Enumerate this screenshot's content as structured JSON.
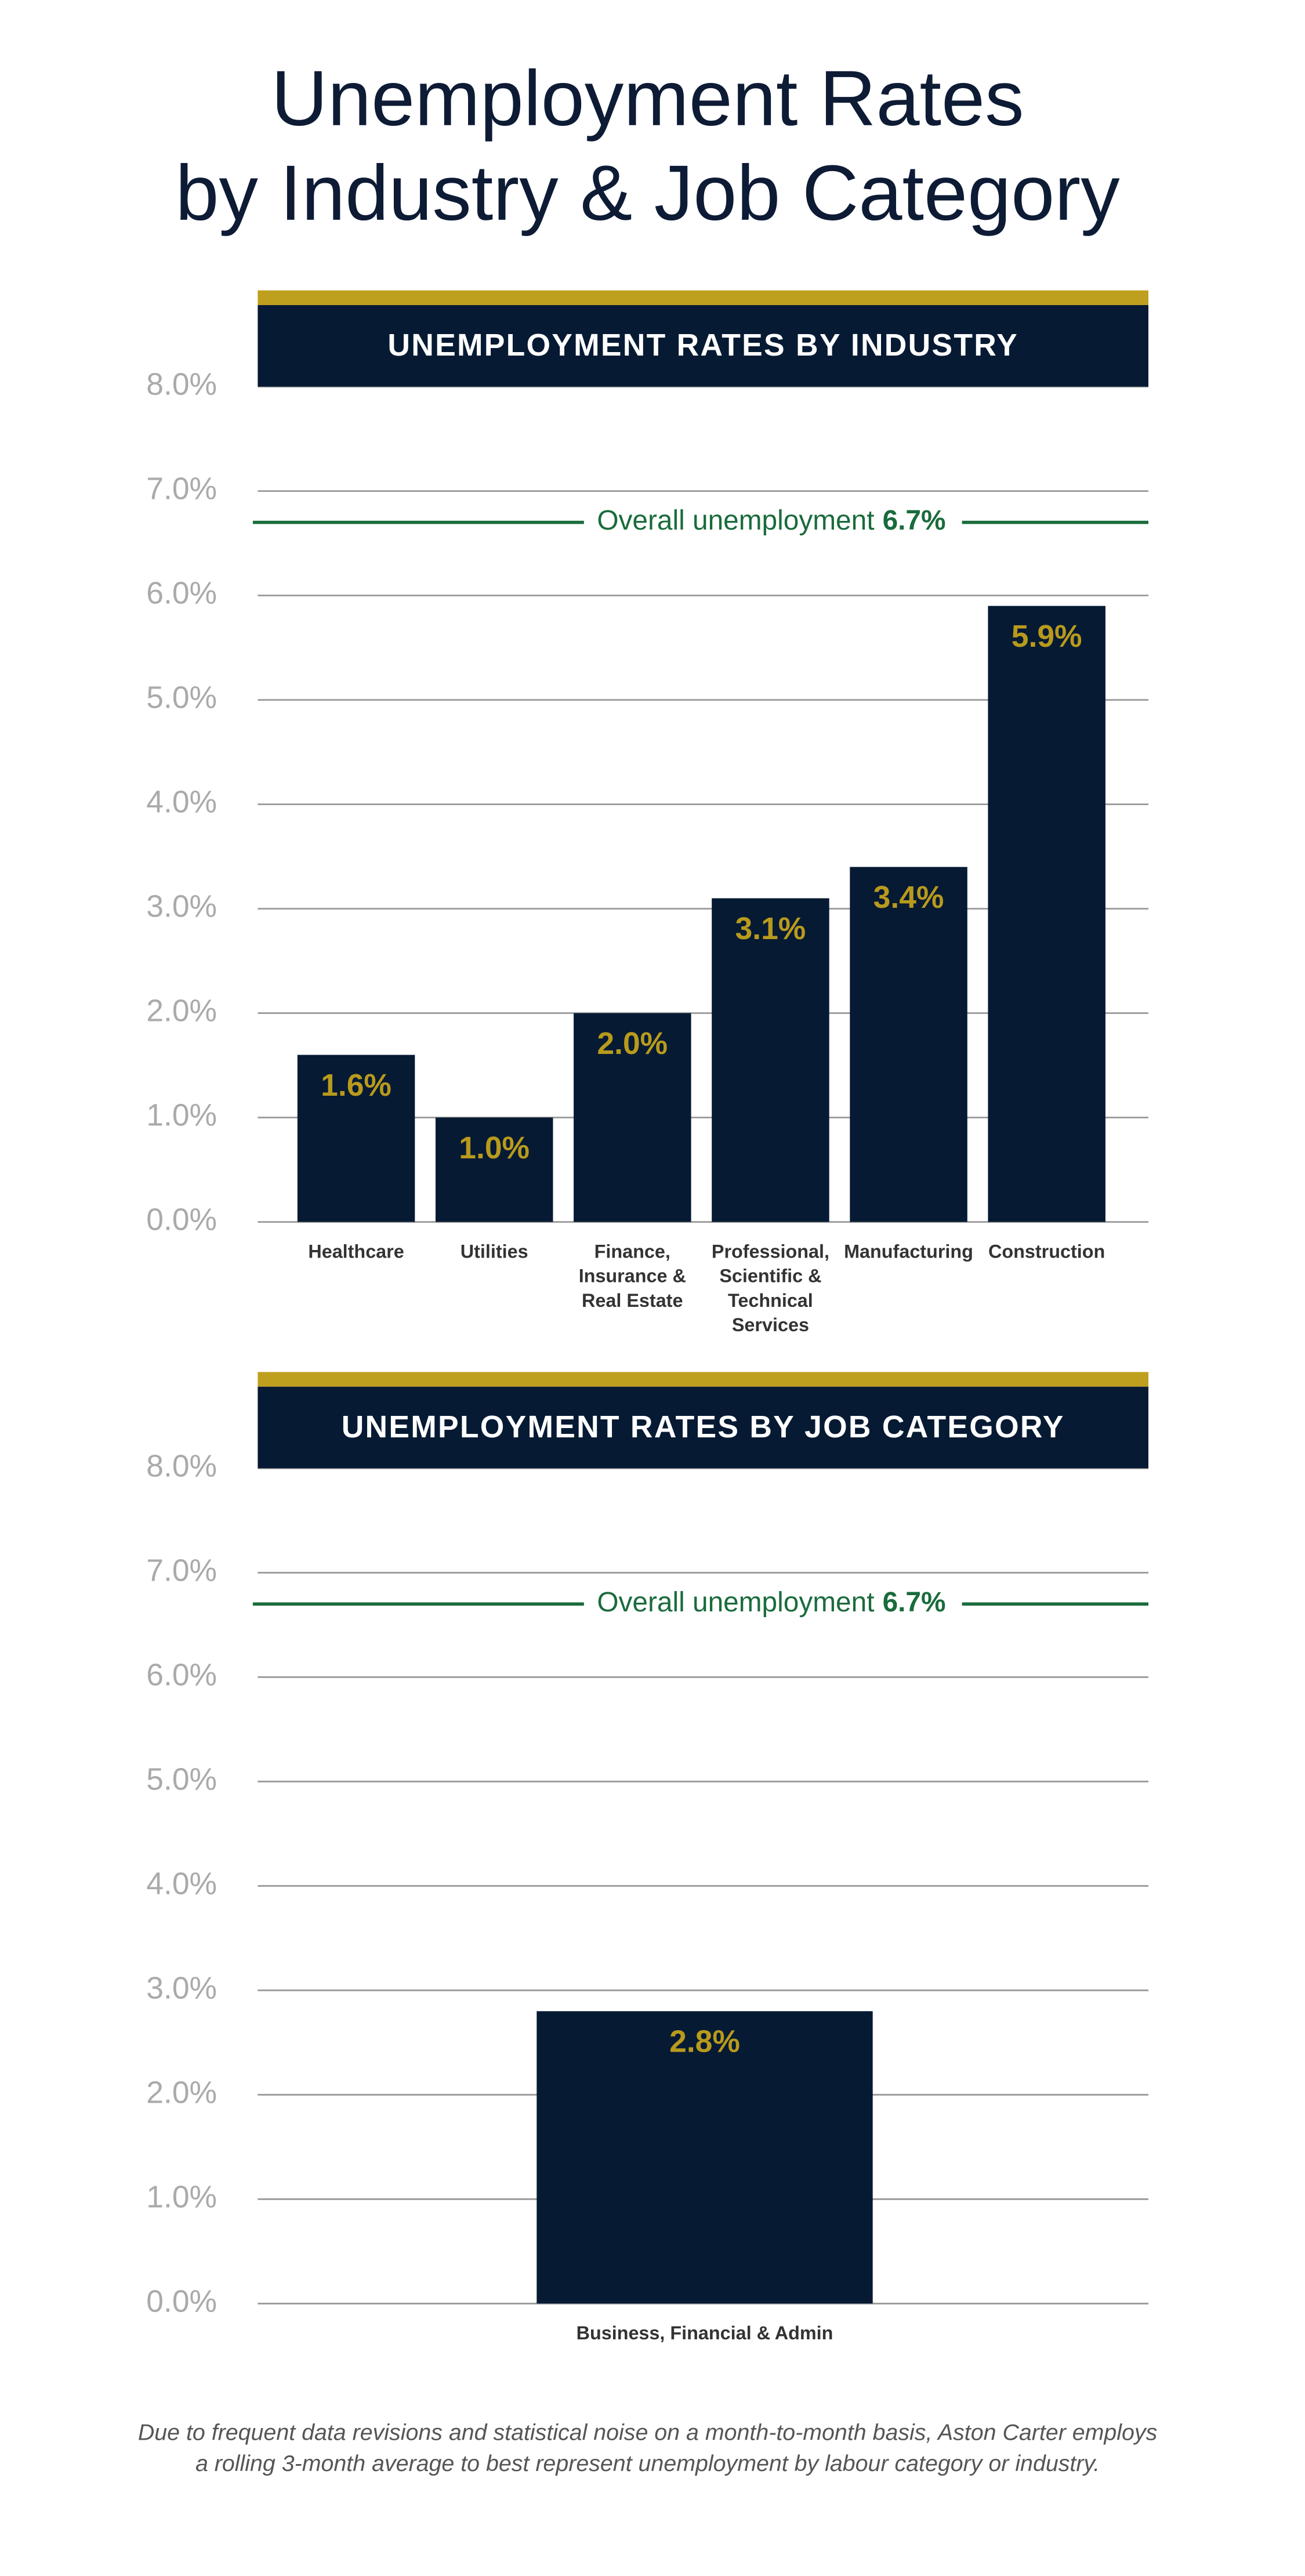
{
  "title": [
    "Unemployment Rates",
    "by Industry & Job Category"
  ],
  "footnote": [
    "Due to frequent data revisions and statistical noise on a month-to-month basis, Aston Carter employs",
    "a rolling 3-month average to best represent unemployment by labour category or industry."
  ],
  "chart_data": [
    {
      "type": "bar",
      "title": "UNEMPLOYMENT RATES BY INDUSTRY",
      "categories": [
        "Healthcare",
        "Utilities",
        "Finance, Insurance & Real Estate",
        "Professional, Scientific & Technical Services",
        "Manufacturing",
        "Construction"
      ],
      "values": [
        1.6,
        1.0,
        2.0,
        3.1,
        3.4,
        5.9
      ],
      "value_labels": [
        "1.6%",
        "1.0%",
        "2.0%",
        "3.1%",
        "3.4%",
        "5.9%"
      ],
      "color": "#061a33",
      "label_color": "#b89a1c",
      "ylim": [
        0,
        8
      ],
      "yticks": [
        {
          "value": 0,
          "label": "0.0%"
        },
        {
          "value": 1,
          "label": "1.0%"
        },
        {
          "value": 2,
          "label": "2.0%"
        },
        {
          "value": 3,
          "label": "3.0%"
        },
        {
          "value": 4,
          "label": "4.0%"
        },
        {
          "value": 5,
          "label": "5.0%"
        },
        {
          "value": 6,
          "label": "6.0%"
        },
        {
          "value": 7,
          "label": "7.0%"
        },
        {
          "value": 8,
          "label": "8.0%"
        }
      ],
      "grid": true,
      "reference": {
        "label": "Overall unemployment",
        "value": 6.7,
        "value_label": "6.7%",
        "color": "#1a6b3c"
      }
    },
    {
      "type": "bar",
      "title": "UNEMPLOYMENT RATES BY JOB CATEGORY",
      "categories": [
        "Business, Financial & Admin"
      ],
      "values": [
        2.8
      ],
      "value_labels": [
        "2.8%"
      ],
      "color": "#061a33",
      "label_color": "#b89a1c",
      "ylim": [
        0,
        8
      ],
      "yticks": [
        {
          "value": 0,
          "label": "0.0%"
        },
        {
          "value": 1,
          "label": "1.0%"
        },
        {
          "value": 2,
          "label": "2.0%"
        },
        {
          "value": 3,
          "label": "3.0%"
        },
        {
          "value": 4,
          "label": "4.0%"
        },
        {
          "value": 5,
          "label": "5.0%"
        },
        {
          "value": 6,
          "label": "6.0%"
        },
        {
          "value": 7,
          "label": "7.0%"
        },
        {
          "value": 8,
          "label": "8.0%"
        }
      ],
      "grid": true,
      "reference": {
        "label": "Overall unemployment",
        "value": 6.7,
        "value_label": "6.7%",
        "color": "#1a6b3c"
      }
    }
  ]
}
